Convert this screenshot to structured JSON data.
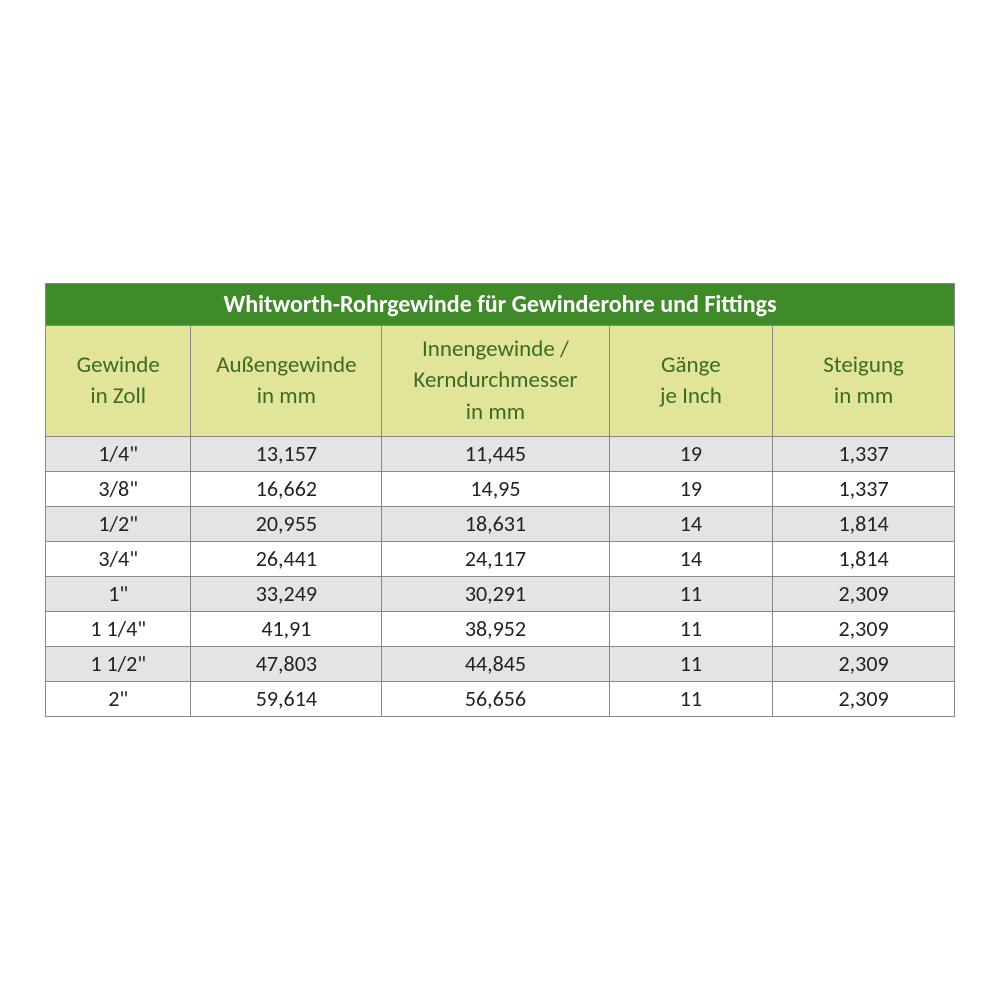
{
  "table": {
    "title": "Whitworth-Rohrgewinde für Gewinderohre und Fittings",
    "columns": [
      "Gewinde\nin Zoll",
      "Außengewinde\nin mm",
      "Innengewinde /\nKerndurchmesser\nin mm",
      "Gänge\nje Inch",
      "Steigung\nin mm"
    ],
    "column_widths_pct": [
      16,
      21,
      25,
      18,
      20
    ],
    "rows": [
      [
        "1/4\"",
        "13,157",
        "11,445",
        "19",
        "1,337"
      ],
      [
        "3/8\"",
        "16,662",
        "14,95",
        "19",
        "1,337"
      ],
      [
        "1/2\"",
        "20,955",
        "18,631",
        "14",
        "1,814"
      ],
      [
        "3/4\"",
        "26,441",
        "24,117",
        "14",
        "1,814"
      ],
      [
        "1\"",
        "33,249",
        "30,291",
        "11",
        "2,309"
      ],
      [
        "1 1/4\"",
        "41,91",
        "38,952",
        "11",
        "2,309"
      ],
      [
        "1 1/2\"",
        "47,803",
        "44,845",
        "11",
        "2,309"
      ],
      [
        "2\"",
        "59,614",
        "56,656",
        "11",
        "2,309"
      ]
    ],
    "colors": {
      "title_bg": "#3f8a29",
      "title_text": "#ffffff",
      "header_bg": "#e2e49a",
      "header_text": "#3a6b28",
      "row_odd_bg": "#e4e4e4",
      "row_even_bg": "#ffffff",
      "border": "#888888",
      "cell_text": "#222222"
    },
    "font_sizes": {
      "title": 24,
      "header": 23,
      "cell": 22
    }
  }
}
